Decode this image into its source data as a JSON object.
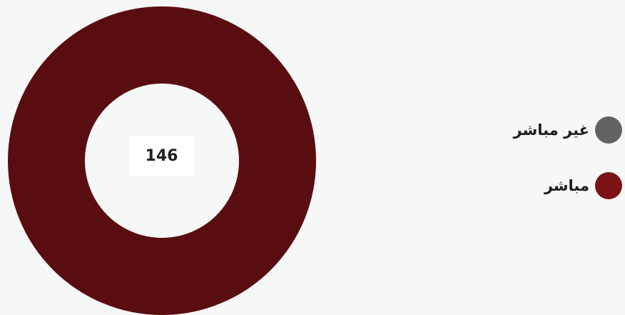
{
  "chart_data": {
    "type": "pie",
    "center_value": "146",
    "slices": [
      {
        "label": "غير مباشر",
        "value": 0,
        "color": "#636363"
      },
      {
        "label": "مباشر",
        "value": 146,
        "color": "#5a0d10"
      }
    ]
  },
  "legend": {
    "items": [
      {
        "label": "غير مباشر",
        "color": "#636363"
      },
      {
        "label": "مباشر",
        "color": "#7b1314"
      }
    ]
  }
}
